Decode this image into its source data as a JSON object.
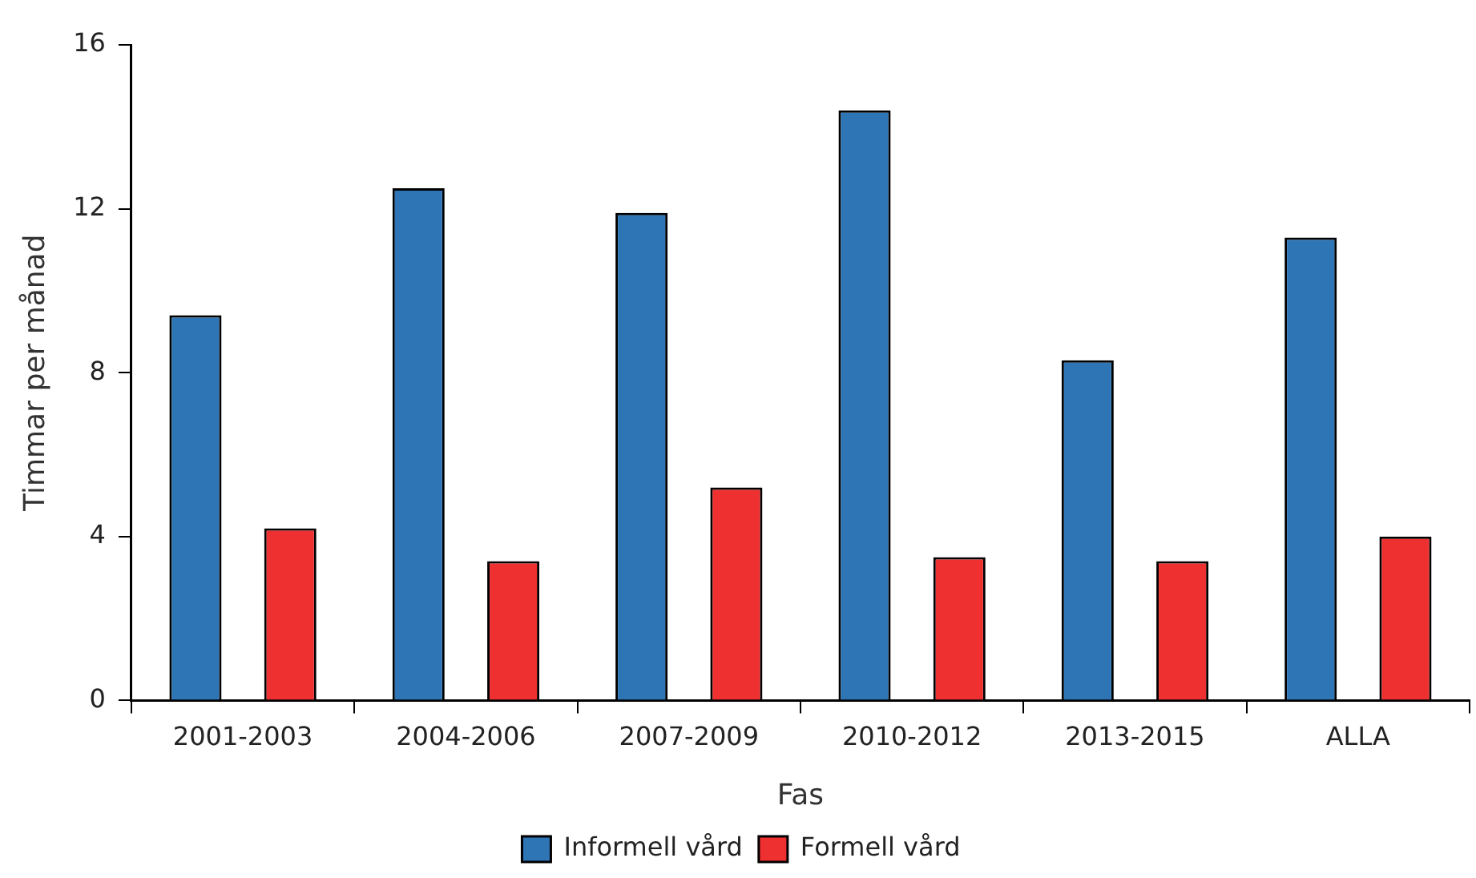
{
  "chart_data": {
    "type": "bar",
    "xlabel": "Fas",
    "ylabel": "Timmar per månad",
    "categories": [
      "2001-2003",
      "2004-2006",
      "2007-2009",
      "2010-2012",
      "2013-2015",
      "ALLA"
    ],
    "series": [
      {
        "name": "Informell vård",
        "color": "#2e75b6",
        "values": [
          9.4,
          12.5,
          11.9,
          14.4,
          8.3,
          11.3
        ]
      },
      {
        "name": "Formell vård",
        "color": "#ee3030",
        "values": [
          4.2,
          3.4,
          5.2,
          3.5,
          3.4,
          4.0
        ]
      }
    ],
    "ylim": [
      0,
      16
    ],
    "yticks": [
      0,
      4,
      8,
      12,
      16
    ],
    "grid": false,
    "legend": "bottom"
  }
}
